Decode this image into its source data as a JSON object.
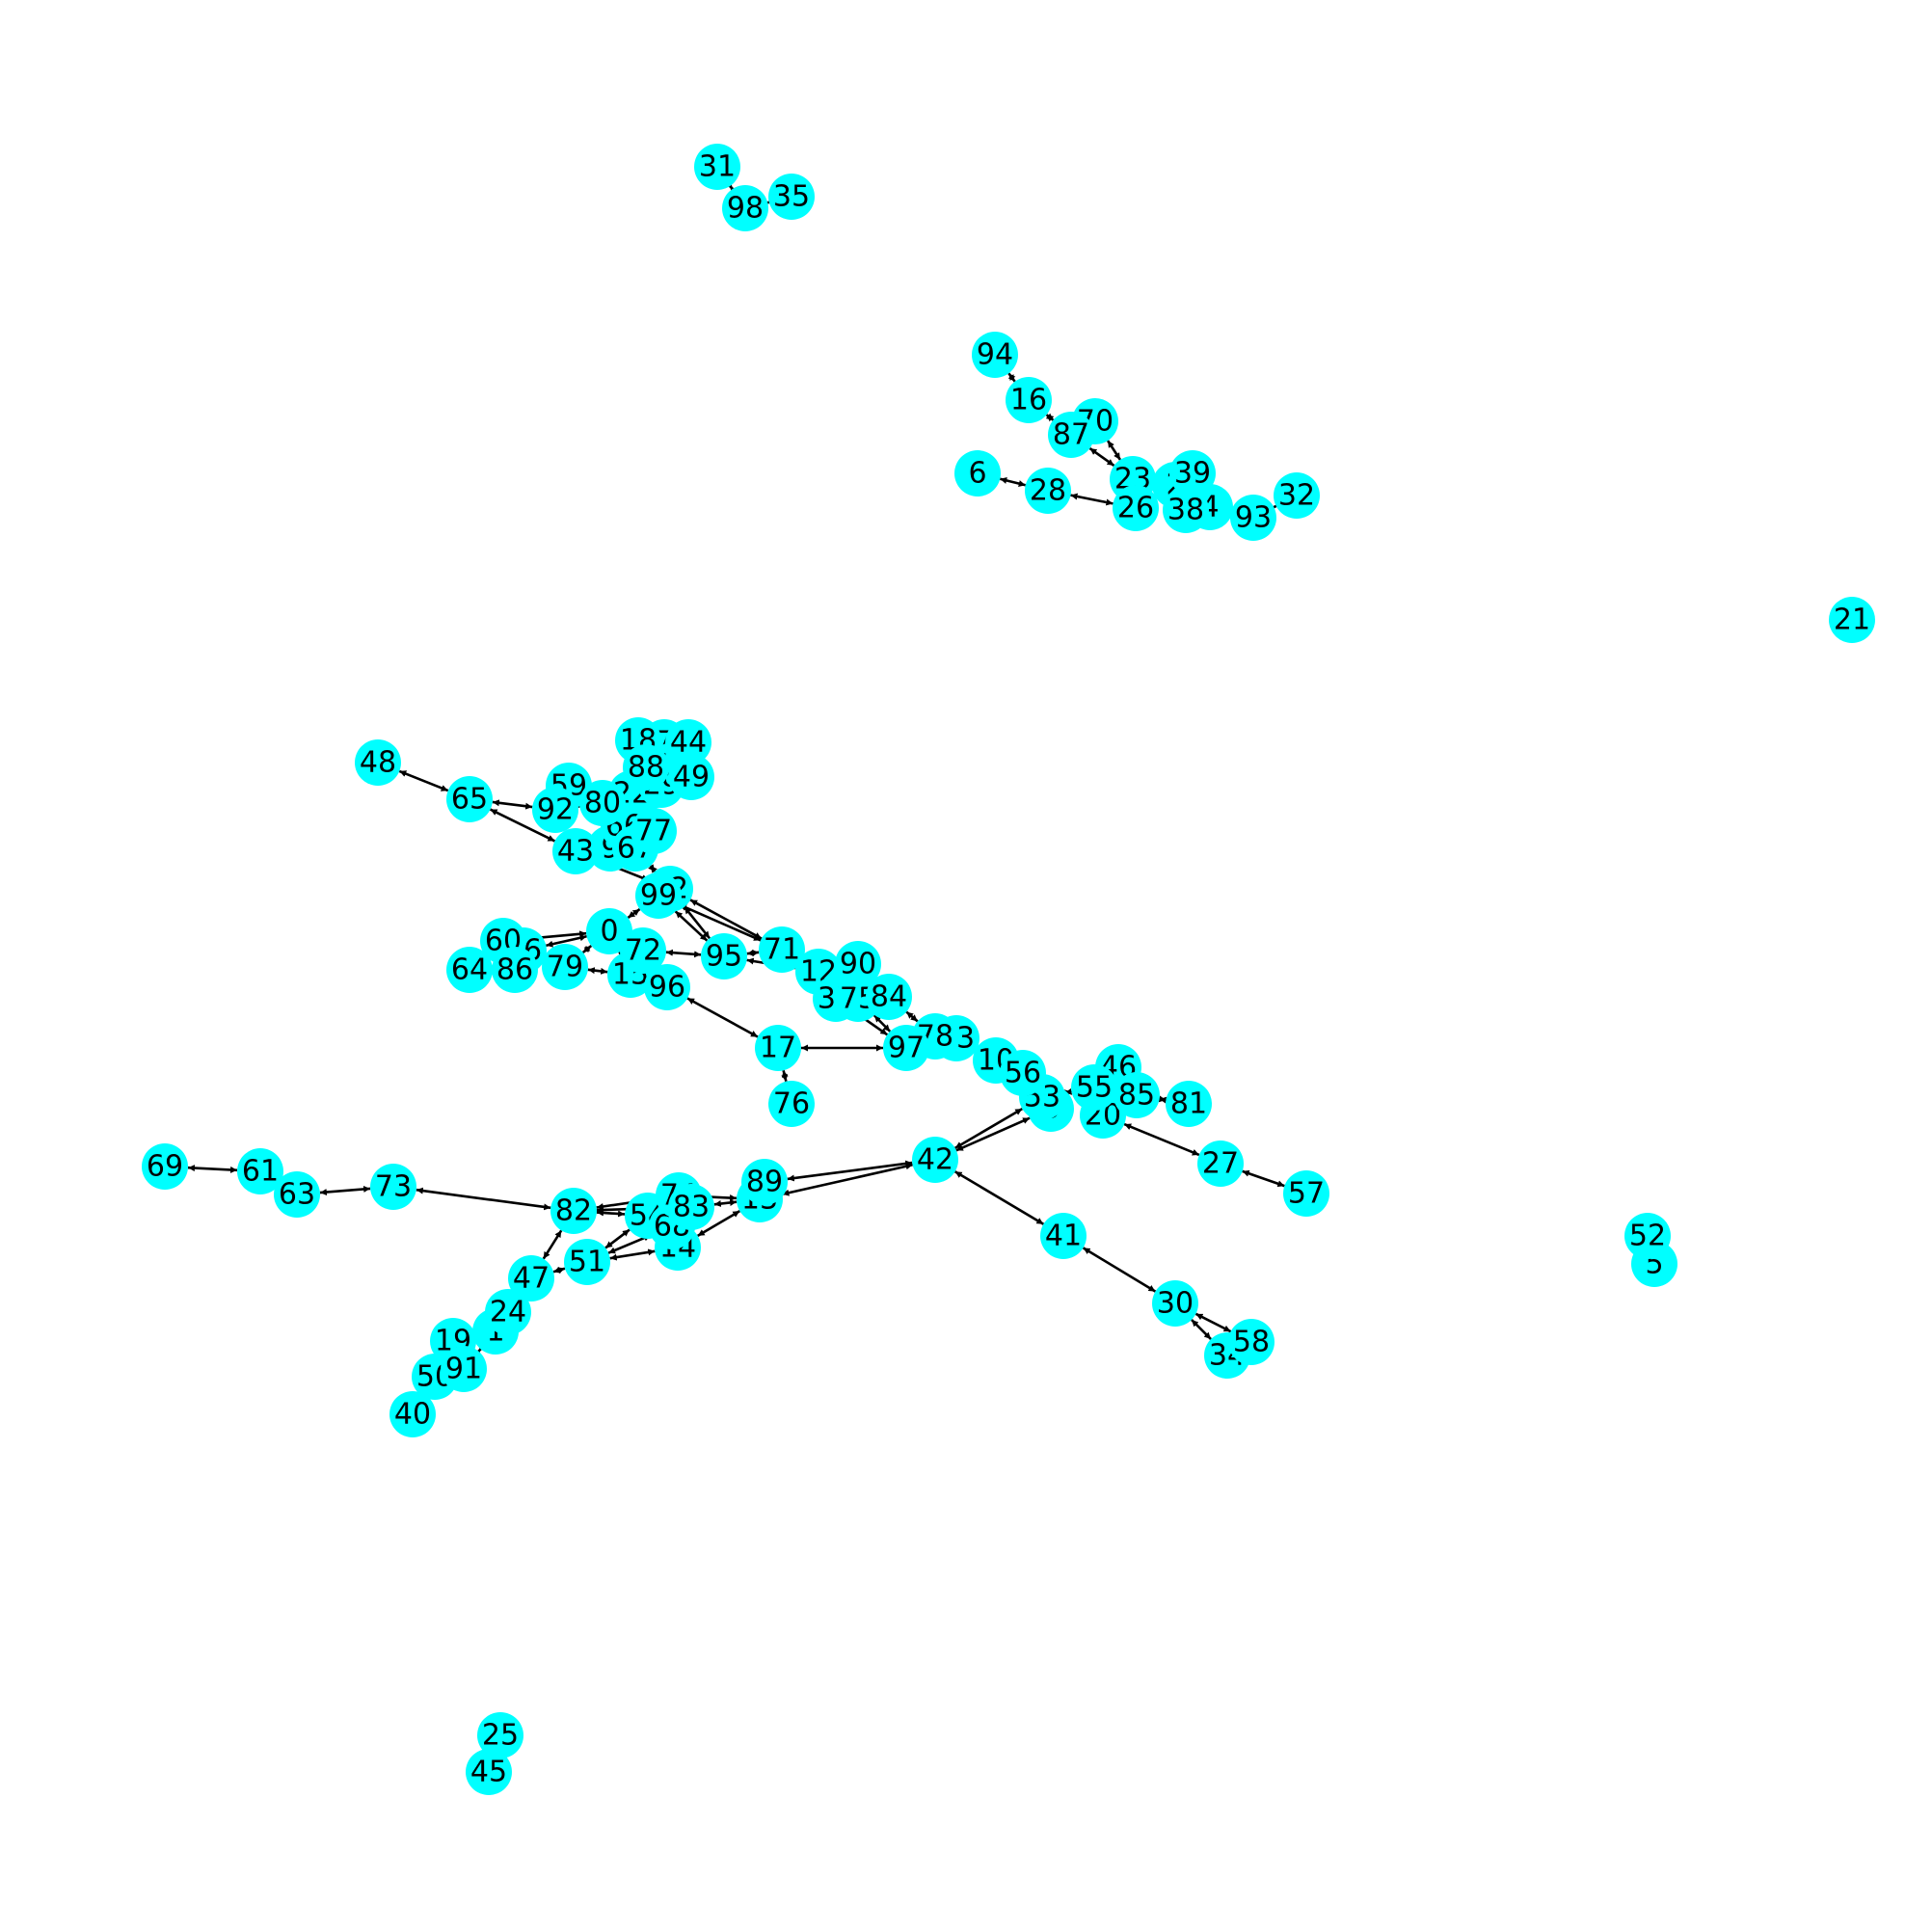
{
  "graph": {
    "type": "directed-graph",
    "node_color": "#00ffff",
    "edge_color": "#000000",
    "nodes": [
      {
        "id": "0"
      },
      {
        "id": "1"
      },
      {
        "id": "2"
      },
      {
        "id": "3"
      },
      {
        "id": "4"
      },
      {
        "id": "5"
      },
      {
        "id": "6"
      },
      {
        "id": "7"
      },
      {
        "id": "8"
      },
      {
        "id": "9"
      },
      {
        "id": "10"
      },
      {
        "id": "11"
      },
      {
        "id": "12"
      },
      {
        "id": "13"
      },
      {
        "id": "14"
      },
      {
        "id": "15"
      },
      {
        "id": "16"
      },
      {
        "id": "17"
      },
      {
        "id": "18"
      },
      {
        "id": "19"
      },
      {
        "id": "20"
      },
      {
        "id": "21"
      },
      {
        "id": "22"
      },
      {
        "id": "23"
      },
      {
        "id": "24"
      },
      {
        "id": "25"
      },
      {
        "id": "26"
      },
      {
        "id": "27"
      },
      {
        "id": "28"
      },
      {
        "id": "29"
      },
      {
        "id": "30"
      },
      {
        "id": "31"
      },
      {
        "id": "32"
      },
      {
        "id": "33"
      },
      {
        "id": "34"
      },
      {
        "id": "35"
      },
      {
        "id": "36"
      },
      {
        "id": "37"
      },
      {
        "id": "38"
      },
      {
        "id": "39"
      },
      {
        "id": "40"
      },
      {
        "id": "41"
      },
      {
        "id": "42"
      },
      {
        "id": "43"
      },
      {
        "id": "44"
      },
      {
        "id": "45"
      },
      {
        "id": "46"
      },
      {
        "id": "47"
      },
      {
        "id": "48"
      },
      {
        "id": "49"
      },
      {
        "id": "50"
      },
      {
        "id": "51"
      },
      {
        "id": "52"
      },
      {
        "id": "53"
      },
      {
        "id": "54"
      },
      {
        "id": "55"
      },
      {
        "id": "56"
      },
      {
        "id": "57"
      },
      {
        "id": "58"
      },
      {
        "id": "59"
      },
      {
        "id": "60"
      },
      {
        "id": "61"
      },
      {
        "id": "62"
      },
      {
        "id": "63"
      },
      {
        "id": "64"
      },
      {
        "id": "65"
      },
      {
        "id": "66"
      },
      {
        "id": "67"
      },
      {
        "id": "68"
      },
      {
        "id": "69"
      },
      {
        "id": "70"
      },
      {
        "id": "71"
      },
      {
        "id": "72"
      },
      {
        "id": "73"
      },
      {
        "id": "74"
      },
      {
        "id": "75"
      },
      {
        "id": "76"
      },
      {
        "id": "77"
      },
      {
        "id": "78"
      },
      {
        "id": "79"
      },
      {
        "id": "80"
      },
      {
        "id": "81"
      },
      {
        "id": "82"
      },
      {
        "id": "83"
      },
      {
        "id": "84"
      },
      {
        "id": "85"
      },
      {
        "id": "86"
      },
      {
        "id": "87"
      },
      {
        "id": "88"
      },
      {
        "id": "89"
      },
      {
        "id": "90"
      },
      {
        "id": "91"
      },
      {
        "id": "92"
      },
      {
        "id": "93"
      },
      {
        "id": "94"
      },
      {
        "id": "95"
      },
      {
        "id": "96"
      },
      {
        "id": "97"
      },
      {
        "id": "98"
      },
      {
        "id": "99"
      }
    ],
    "edges": [
      [
        "94",
        "16"
      ],
      [
        "16",
        "87"
      ],
      [
        "87",
        "70"
      ],
      [
        "70",
        "23"
      ],
      [
        "87",
        "23"
      ],
      [
        "23",
        "2"
      ],
      [
        "2",
        "39"
      ],
      [
        "2",
        "38"
      ],
      [
        "38",
        "4"
      ],
      [
        "4",
        "93"
      ],
      [
        "93",
        "32"
      ],
      [
        "26",
        "23"
      ],
      [
        "28",
        "26"
      ],
      [
        "6",
        "28"
      ],
      [
        "48",
        "65"
      ],
      [
        "65",
        "92"
      ],
      [
        "43",
        "65"
      ],
      [
        "92",
        "80"
      ],
      [
        "59",
        "80"
      ],
      [
        "80",
        "22"
      ],
      [
        "18",
        "88"
      ],
      [
        "7",
        "88"
      ],
      [
        "44",
        "11"
      ],
      [
        "88",
        "8"
      ],
      [
        "11",
        "29"
      ],
      [
        "29",
        "49"
      ],
      [
        "22",
        "66"
      ],
      [
        "8",
        "66"
      ],
      [
        "66",
        "9"
      ],
      [
        "9",
        "43"
      ],
      [
        "77",
        "67"
      ],
      [
        "66",
        "77"
      ],
      [
        "67",
        "62"
      ],
      [
        "43",
        "62"
      ],
      [
        "62",
        "99"
      ],
      [
        "99",
        "0"
      ],
      [
        "99",
        "95"
      ],
      [
        "62",
        "95"
      ],
      [
        "62",
        "71"
      ],
      [
        "99",
        "71"
      ],
      [
        "60",
        "0"
      ],
      [
        "36",
        "0"
      ],
      [
        "64",
        "86"
      ],
      [
        "86",
        "36"
      ],
      [
        "0",
        "72"
      ],
      [
        "0",
        "79"
      ],
      [
        "0",
        "15"
      ],
      [
        "72",
        "95"
      ],
      [
        "72",
        "96"
      ],
      [
        "15",
        "96"
      ],
      [
        "79",
        "15"
      ],
      [
        "95",
        "71"
      ],
      [
        "12",
        "95"
      ],
      [
        "90",
        "12"
      ],
      [
        "96",
        "17"
      ],
      [
        "17",
        "97"
      ],
      [
        "17",
        "76"
      ],
      [
        "37",
        "97"
      ],
      [
        "75",
        "97"
      ],
      [
        "84",
        "78"
      ],
      [
        "97",
        "78"
      ],
      [
        "78",
        "33"
      ],
      [
        "33",
        "10"
      ],
      [
        "10",
        "56"
      ],
      [
        "56",
        "53"
      ],
      [
        "53",
        "3"
      ],
      [
        "53",
        "55"
      ],
      [
        "55",
        "46"
      ],
      [
        "55",
        "85"
      ],
      [
        "85",
        "81"
      ],
      [
        "20",
        "27"
      ],
      [
        "27",
        "57"
      ],
      [
        "3",
        "42"
      ],
      [
        "42",
        "53"
      ],
      [
        "42",
        "41"
      ],
      [
        "41",
        "30"
      ],
      [
        "30",
        "34"
      ],
      [
        "30",
        "58"
      ],
      [
        "42",
        "89"
      ],
      [
        "42",
        "13"
      ],
      [
        "89",
        "13"
      ],
      [
        "13",
        "74"
      ],
      [
        "13",
        "83"
      ],
      [
        "13",
        "14"
      ],
      [
        "74",
        "82"
      ],
      [
        "83",
        "82"
      ],
      [
        "54",
        "82"
      ],
      [
        "68",
        "51"
      ],
      [
        "14",
        "51"
      ],
      [
        "54",
        "51"
      ],
      [
        "82",
        "73"
      ],
      [
        "73",
        "63"
      ],
      [
        "63",
        "61"
      ],
      [
        "61",
        "69"
      ],
      [
        "82",
        "47"
      ],
      [
        "47",
        "51"
      ],
      [
        "24",
        "47"
      ],
      [
        "19",
        "1"
      ],
      [
        "1",
        "24"
      ],
      [
        "50",
        "91"
      ],
      [
        "91",
        "1"
      ],
      [
        "40",
        "50"
      ],
      [
        "31",
        "98"
      ],
      [
        "98",
        "35"
      ],
      [
        "52",
        "5"
      ],
      [
        "25",
        "45"
      ]
    ]
  }
}
